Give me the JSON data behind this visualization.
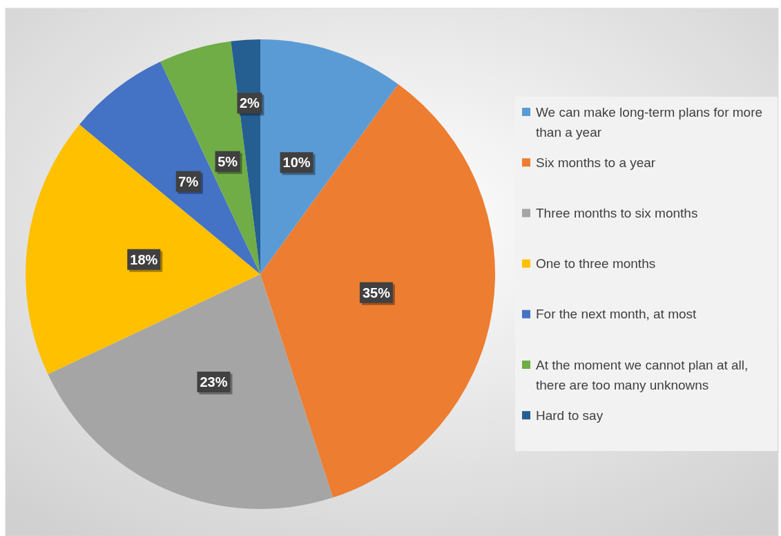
{
  "chart_data": {
    "type": "pie",
    "categories": [
      "We can make long-term plans for more than a year",
      "Six months to a year",
      "Three months to six months",
      "One to three months",
      "For the next month, at most",
      "At the moment we cannot plan at all, there are too many unknowns",
      "Hard to say"
    ],
    "values": [
      10,
      35,
      23,
      18,
      7,
      5,
      2
    ],
    "colors": [
      "#5b9bd5",
      "#ed7d31",
      "#a5a5a5",
      "#ffc000",
      "#4472c4",
      "#70ad47",
      "#255e91"
    ],
    "value_labels": [
      "10%",
      "35%",
      "23%",
      "18%",
      "7%",
      "5%",
      "2%"
    ],
    "legend": "right"
  }
}
